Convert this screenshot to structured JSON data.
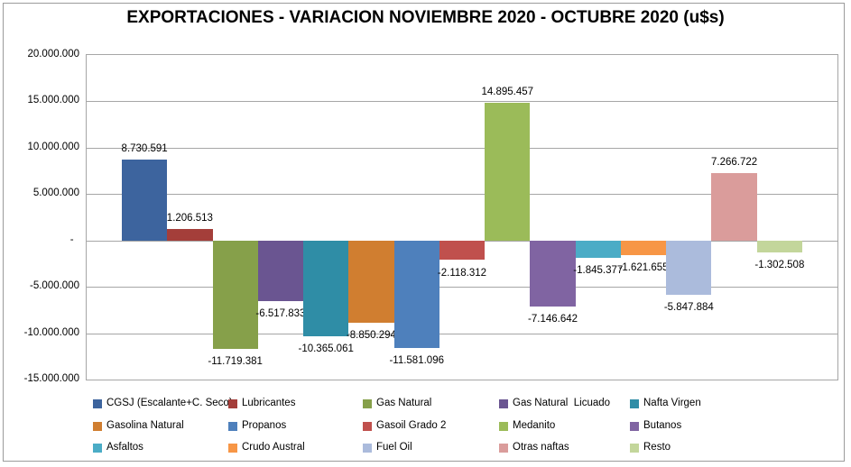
{
  "title": "EXPORTACIONES - VARIACION NOVIEMBRE 2020 - OCTUBRE 2020 (u$s)",
  "chart_data": {
    "type": "bar",
    "title": "EXPORTACIONES - VARIACION NOVIEMBRE 2020 - OCTUBRE 2020 (u$s)",
    "xlabel": "",
    "ylabel": "",
    "ylim": [
      -15000000,
      20000000
    ],
    "y_tick_interval": 5000000,
    "y_tick_labels": [
      "20.000.000",
      "15.000.000",
      "10.000.000",
      "5.000.000",
      "-  ",
      "-5.000.000",
      "-10.000.000",
      "-15.000.000"
    ],
    "grid": true,
    "legend_position": "bottom",
    "gridline_color": "#A6A6A6",
    "series": [
      {
        "name": "CGSJ (Escalante+C. Seco)",
        "value": 8730591,
        "label": "8.730.591",
        "color": "#3D649E"
      },
      {
        "name": "Lubricantes",
        "value": 1206513,
        "label": "1.206.513",
        "color": "#A43E3A"
      },
      {
        "name": "Gas Natural",
        "value": -11719381,
        "label": "-11.719.381",
        "color": "#86A04A"
      },
      {
        "name": "Gas Natural  Licuado",
        "value": -6517833,
        "label": "-6.517.833",
        "color": "#6A5591"
      },
      {
        "name": "Nafta Virgen",
        "value": -10365061,
        "label": "-10.365.061",
        "color": "#2F8DA6"
      },
      {
        "name": "Gasolina Natural",
        "value": -8850294,
        "label": "-8.850.294",
        "color": "#D07E30"
      },
      {
        "name": "Propanos",
        "value": -11581096,
        "label": "-11.581.096",
        "color": "#4E80BC"
      },
      {
        "name": "Gasoil Grado 2",
        "value": -2118312,
        "label": "-2.118.312",
        "color": "#C0504D"
      },
      {
        "name": "Medanito",
        "value": 14895457,
        "label": "14.895.457",
        "color": "#9BBB59"
      },
      {
        "name": "Butanos",
        "value": -7146642,
        "label": "-7.146.642",
        "color": "#8064A2"
      },
      {
        "name": "Asfaltos",
        "value": -1845377,
        "label": "-1.845.377",
        "color": "#4BACC6"
      },
      {
        "name": "Crudo Austral",
        "value": -1621655,
        "label": "-1.621.655",
        "color": "#F79646"
      },
      {
        "name": "Fuel Oil",
        "value": -5847884,
        "label": "-5.847.884",
        "color": "#ABBBDC"
      },
      {
        "name": "Otras naftas",
        "value": 7266722,
        "label": "7.266.722",
        "color": "#DA9C9B"
      },
      {
        "name": "Resto",
        "value": -1302508,
        "label": "-1.302.508",
        "color": "#C3D69B"
      }
    ]
  }
}
